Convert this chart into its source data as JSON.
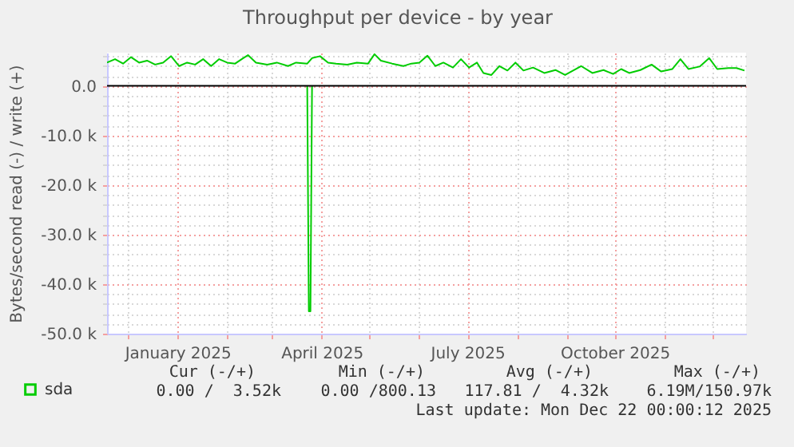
{
  "chart_data": {
    "type": "line",
    "title": "Throughput per device - by year",
    "ylabel": "Bytes/second read (-) / write (+)",
    "xlim": [
      "2024-11-18",
      "2025-12-22"
    ],
    "xticks": [
      {
        "value": "2024-12-01",
        "label": null
      },
      {
        "value": "2025-01-01",
        "label": "January 2025"
      },
      {
        "value": "2025-02-01",
        "label": null
      },
      {
        "value": "2025-03-01",
        "label": null
      },
      {
        "value": "2025-04-01",
        "label": "April 2025"
      },
      {
        "value": "2025-05-01",
        "label": null
      },
      {
        "value": "2025-06-01",
        "label": null
      },
      {
        "value": "2025-07-01",
        "label": "July 2025"
      },
      {
        "value": "2025-08-01",
        "label": null
      },
      {
        "value": "2025-09-01",
        "label": null
      },
      {
        "value": "2025-10-01",
        "label": "October 2025"
      },
      {
        "value": "2025-11-01",
        "label": null
      },
      {
        "value": "2025-12-01",
        "label": null
      }
    ],
    "ylim": [
      -50000,
      6700
    ],
    "yticks": [
      {
        "value": -50000,
        "label": "-50.0 k"
      },
      {
        "value": -48000,
        "label": null
      },
      {
        "value": -46000,
        "label": null
      },
      {
        "value": -44000,
        "label": null
      },
      {
        "value": -42000,
        "label": null
      },
      {
        "value": -40000,
        "label": "-40.0 k"
      },
      {
        "value": -38000,
        "label": null
      },
      {
        "value": -36000,
        "label": null
      },
      {
        "value": -34000,
        "label": null
      },
      {
        "value": -32000,
        "label": null
      },
      {
        "value": -30000,
        "label": "-30.0 k"
      },
      {
        "value": -28000,
        "label": null
      },
      {
        "value": -26000,
        "label": null
      },
      {
        "value": -24000,
        "label": null
      },
      {
        "value": -22000,
        "label": null
      },
      {
        "value": -20000,
        "label": "-20.0 k"
      },
      {
        "value": -18000,
        "label": null
      },
      {
        "value": -16000,
        "label": null
      },
      {
        "value": -14000,
        "label": null
      },
      {
        "value": -12000,
        "label": null
      },
      {
        "value": -10000,
        "label": "-10.0 k"
      },
      {
        "value": -8000,
        "label": null
      },
      {
        "value": -6000,
        "label": null
      },
      {
        "value": -4000,
        "label": null
      },
      {
        "value": -2000,
        "label": null
      },
      {
        "value": 0,
        "label": "0.0"
      },
      {
        "value": 2000,
        "label": null
      },
      {
        "value": 4000,
        "label": null
      },
      {
        "value": 6000,
        "label": null
      }
    ],
    "grid": true,
    "legend": "bottom",
    "ref_lines": [
      {
        "axis": "y",
        "value": 0,
        "color": "#000000"
      }
    ],
    "series": [
      {
        "name": "sda",
        "color": "#00cc00",
        "x": [
          "2024-11-18",
          "2024-11-23",
          "2024-11-28",
          "2024-12-03",
          "2024-12-08",
          "2024-12-13",
          "2024-12-18",
          "2024-12-23",
          "2024-12-28",
          "2025-01-02",
          "2025-01-07",
          "2025-01-12",
          "2025-01-17",
          "2025-01-22",
          "2025-01-27",
          "2025-02-01",
          "2025-02-06",
          "2025-02-11",
          "2025-02-14",
          "2025-02-19",
          "2025-02-26",
          "2025-03-04",
          "2025-03-11",
          "2025-03-16",
          "2025-03-23",
          "2025-03-26",
          "2025-03-31",
          "2025-04-05",
          "2025-04-10",
          "2025-04-17",
          "2025-04-23",
          "2025-04-30",
          "2025-05-04",
          "2025-05-08",
          "2025-05-15",
          "2025-05-22",
          "2025-05-27",
          "2025-06-01",
          "2025-06-06",
          "2025-06-11",
          "2025-06-16",
          "2025-06-22",
          "2025-06-27",
          "2025-07-02",
          "2025-07-07",
          "2025-07-11",
          "2025-07-16",
          "2025-07-21",
          "2025-07-26",
          "2025-07-31",
          "2025-08-05",
          "2025-08-11",
          "2025-08-18",
          "2025-08-25",
          "2025-08-31",
          "2025-09-05",
          "2025-09-10",
          "2025-09-17",
          "2025-09-24",
          "2025-09-30",
          "2025-10-05",
          "2025-10-10",
          "2025-10-17",
          "2025-10-24",
          "2025-10-30",
          "2025-11-06",
          "2025-11-11",
          "2025-11-16",
          "2025-11-23",
          "2025-11-29",
          "2025-12-04",
          "2025-12-11",
          "2025-12-16",
          "2025-12-21"
        ],
        "values": [
          4700,
          5400,
          4500,
          5800,
          4700,
          5100,
          4300,
          4700,
          6000,
          4000,
          4700,
          4300,
          5400,
          4000,
          5400,
          4700,
          4500,
          5600,
          6200,
          4700,
          4300,
          4700,
          4000,
          4700,
          4500,
          5600,
          6000,
          4700,
          4500,
          4300,
          4700,
          4500,
          6400,
          5100,
          4500,
          4000,
          4500,
          4700,
          6100,
          4000,
          4700,
          3700,
          5400,
          3700,
          4700,
          2600,
          2200,
          4000,
          3100,
          4700,
          3100,
          3700,
          2600,
          3200,
          2200,
          3100,
          4000,
          2600,
          3200,
          2400,
          3400,
          2600,
          3200,
          4300,
          2900,
          3400,
          5400,
          3400,
          3900,
          5600,
          3400,
          3600,
          3600,
          3100
        ]
      },
      {
        "color": "#00cc00",
        "x": [
          "2025-03-23",
          "2025-03-24",
          "2025-03-25",
          "2025-03-26"
        ],
        "values": [
          0,
          -45500,
          -45500,
          0
        ]
      }
    ],
    "annotations": [
      "Cur (-/+)",
      "Min (-/+)",
      "Avg (-/+)",
      "Max (-/+)",
      "0.00 /  3.52k",
      "0.00 /800.13",
      "117.81 /  4.32k",
      "6.19M/150.97k",
      "Last update: Mon Dec 22 00:00:12 2025"
    ]
  }
}
